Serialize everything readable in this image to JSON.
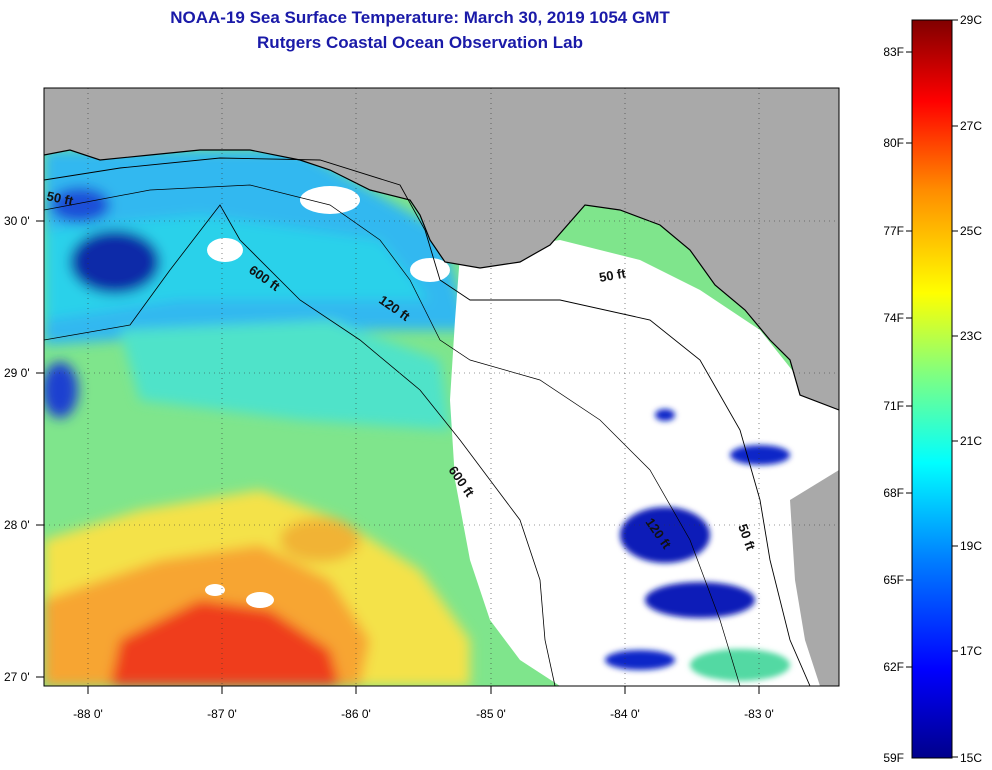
{
  "header": {
    "title_line1": "NOAA-19 Sea Surface Temperature:  March 30, 2019 1054 GMT",
    "title_line2": "Rutgers Coastal Ocean Observation Lab"
  },
  "map": {
    "lat_ticks": [
      "30 0'",
      "29 0'",
      "28 0'",
      "27 0'"
    ],
    "lon_ticks": [
      "-88 0'",
      "-87 0'",
      "-86 0'",
      "-85 0'",
      "-84 0'",
      "-83 0'"
    ],
    "contour_labels": [
      "50 ft",
      "600 ft",
      "120 ft",
      "50 ft",
      "600 ft",
      "120 ft",
      "50 ft"
    ],
    "colors": {
      "land": "#a9a9a9",
      "cloud": "#ffffff"
    }
  },
  "colorbar": {
    "fahrenheit_labels": [
      "83F",
      "80F",
      "77F",
      "74F",
      "71F",
      "68F",
      "65F",
      "62F",
      "59F"
    ],
    "celsius_labels": [
      "29C",
      "27C",
      "25C",
      "23C",
      "21C",
      "19C",
      "17C",
      "15C"
    ],
    "gradient_stops": [
      "#800000",
      "#ff0000",
      "#ff8c00",
      "#ffff00",
      "#80ff80",
      "#00ffff",
      "#0080ff",
      "#0000ff",
      "#00008b"
    ]
  }
}
